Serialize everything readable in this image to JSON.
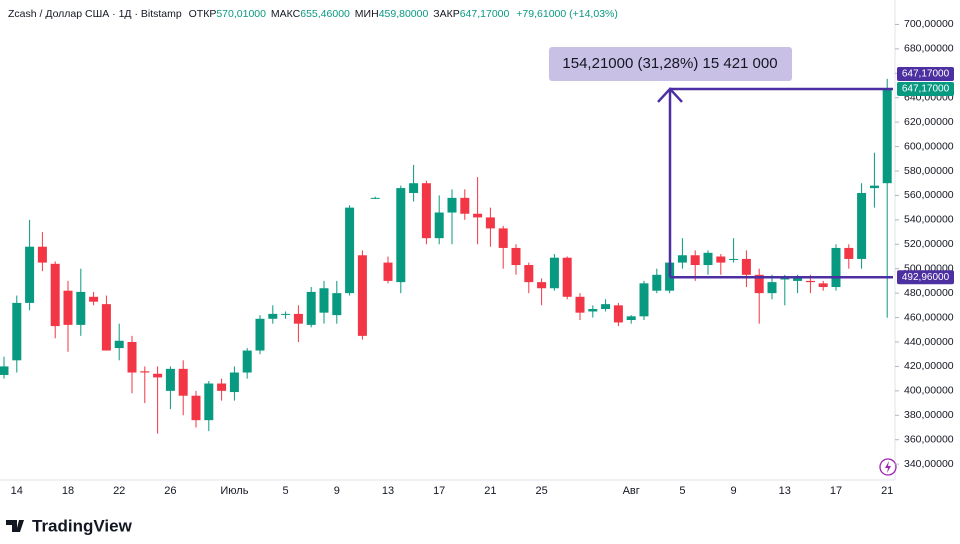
{
  "chart_data": {
    "type": "candlestick",
    "header": {
      "symbol": "Zcash / Доллар США · 1Д · Bitstamp",
      "open_label": "ОТКР",
      "open_value": "570,01000",
      "high_label": "МАКС",
      "high_value": "655,46000",
      "low_label": "МИН",
      "low_value": "459,80000",
      "close_label": "ЗАКР",
      "close_value": "647,17000",
      "change": "+79,61000 (+14,03%)"
    },
    "categories": [
      null,
      "14",
      null,
      null,
      null,
      "18",
      null,
      null,
      null,
      "22",
      null,
      null,
      null,
      "26",
      null,
      null,
      null,
      null,
      "Июль",
      null,
      null,
      null,
      "5",
      null,
      null,
      null,
      "9",
      null,
      null,
      null,
      "13",
      null,
      null,
      null,
      "17",
      null,
      null,
      null,
      "21",
      null,
      null,
      null,
      "25",
      null,
      null,
      null,
      null,
      null,
      null,
      "Авг",
      null,
      null,
      null,
      "5",
      null,
      null,
      null,
      "9",
      null,
      null,
      null,
      "13",
      null,
      null,
      null,
      "17",
      null,
      null,
      null,
      "21"
    ],
    "open": [
      413,
      425,
      472,
      518,
      504,
      482,
      454,
      477,
      471,
      435,
      440,
      416,
      414,
      400,
      418,
      396,
      376,
      406,
      399,
      415,
      433,
      459,
      463,
      463,
      454,
      464,
      462,
      480,
      511,
      558,
      505,
      489,
      562,
      570,
      525,
      546,
      558,
      545,
      542,
      533,
      517,
      503,
      489,
      484,
      509,
      477,
      465,
      467,
      470,
      458,
      461,
      482,
      482,
      505,
      511,
      503,
      510,
      508,
      508,
      495,
      480,
      492,
      490,
      490,
      488,
      485,
      517,
      508,
      566,
      570.01
    ],
    "high": [
      428,
      478,
      540,
      530,
      506,
      490,
      500,
      481,
      478,
      455,
      445,
      420,
      420,
      420,
      425,
      400,
      408,
      410,
      420,
      435,
      462,
      470,
      465,
      470,
      485,
      490,
      490,
      552,
      515,
      559,
      510,
      568,
      585,
      572,
      560,
      565,
      565,
      575,
      550,
      535,
      520,
      505,
      492,
      512,
      510,
      480,
      470,
      475,
      472,
      462,
      490,
      500,
      510,
      525,
      515,
      515,
      512,
      525,
      515,
      500,
      495,
      495,
      495,
      495,
      490,
      520,
      520,
      570,
      595,
      655.46
    ],
    "low": [
      410,
      415,
      466,
      498,
      443,
      432,
      445,
      470,
      433,
      425,
      398,
      390,
      365,
      385,
      380,
      370,
      367,
      392,
      392,
      410,
      430,
      455,
      459,
      440,
      452,
      455,
      455,
      478,
      442,
      557,
      488,
      480,
      555,
      520,
      520,
      520,
      540,
      520,
      518,
      500,
      495,
      480,
      470,
      482,
      475,
      458,
      460,
      465,
      453,
      455,
      458,
      480,
      480,
      500,
      490,
      495,
      495,
      505,
      485,
      455,
      475,
      470,
      480,
      480,
      482,
      482,
      500,
      500,
      550,
      459.8
    ],
    "close": [
      420,
      472,
      518,
      505,
      453,
      454,
      481,
      473,
      433,
      441,
      415,
      415,
      411,
      418,
      396,
      376,
      406,
      400,
      415,
      433,
      459,
      463,
      463,
      455,
      481,
      484,
      480,
      550,
      445,
      558,
      490,
      566,
      570,
      525,
      546,
      558,
      545,
      542,
      533,
      517,
      503,
      489,
      484,
      509,
      477,
      464,
      467,
      471,
      456,
      461,
      488,
      495,
      505,
      511,
      503,
      513,
      505,
      508,
      495,
      480,
      489,
      492,
      493,
      489,
      485,
      517,
      508,
      562,
      568,
      647.17
    ],
    "up_color": "#089981",
    "down_color": "#f23645",
    "ylim": [
      327,
      720
    ],
    "yticks": [
      {
        "value": 340,
        "label": "340,00000"
      },
      {
        "value": 360,
        "label": "360,00000"
      },
      {
        "value": 380,
        "label": "380,00000"
      },
      {
        "value": 400,
        "label": "400,00000"
      },
      {
        "value": 420,
        "label": "420,00000"
      },
      {
        "value": 440,
        "label": "440,00000"
      },
      {
        "value": 460,
        "label": "460,00000"
      },
      {
        "value": 480,
        "label": "480,00000"
      },
      {
        "value": 500,
        "label": "500,00000"
      },
      {
        "value": 520,
        "label": "520,00000"
      },
      {
        "value": 540,
        "label": "540,00000"
      },
      {
        "value": 560,
        "label": "560,00000"
      },
      {
        "value": 580,
        "label": "580,00000"
      },
      {
        "value": 600,
        "label": "600,00000"
      },
      {
        "value": 620,
        "label": "620,00000"
      },
      {
        "value": 640,
        "label": "640,00000"
      },
      {
        "value": 660,
        "label": "660,00000"
      },
      {
        "value": 680,
        "label": "680,00000"
      },
      {
        "value": 700,
        "label": "700,00000"
      }
    ],
    "grid": false,
    "last_price": {
      "value": 647.17,
      "label": "647,17000",
      "color": "#089981"
    },
    "measure": {
      "label": "154,21000 (31,28%) 15 421 000",
      "color": "#4c2fa0",
      "from": {
        "value": 492.96,
        "label": "492,96000"
      },
      "to": {
        "value": 647.17,
        "label": "647,17000"
      }
    },
    "brand": "TradingView"
  }
}
